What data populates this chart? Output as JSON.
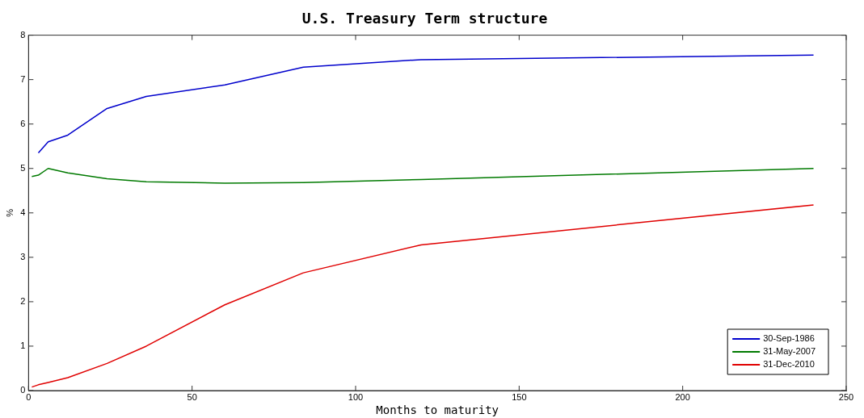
{
  "chart_data": {
    "type": "line",
    "title": "U.S. Treasury Term structure",
    "xlabel": "Months to maturity",
    "ylabel": "%",
    "xlim": [
      0,
      250
    ],
    "xticks": [
      0,
      50,
      100,
      150,
      200,
      250
    ],
    "ylim": [
      0,
      8
    ],
    "yticks": [
      0,
      1,
      2,
      3,
      4,
      5,
      6,
      7,
      8
    ],
    "grid": false,
    "legend": "bottom right",
    "marker": "none",
    "line_style": "solid",
    "series": [
      {
        "name": "30-Sep-1986",
        "color": "#0000cc",
        "x": [
          3,
          6,
          12,
          24,
          36,
          60,
          84,
          120,
          240
        ],
        "values": [
          5.35,
          5.6,
          5.75,
          6.35,
          6.62,
          6.88,
          7.28,
          7.45,
          7.55
        ]
      },
      {
        "name": "31-May-2007",
        "color": "#007a00",
        "x": [
          1,
          3,
          6,
          12,
          24,
          36,
          60,
          84,
          120,
          240
        ],
        "values": [
          4.82,
          4.85,
          5.0,
          4.9,
          4.77,
          4.7,
          4.67,
          4.68,
          4.75,
          5.0
        ]
      },
      {
        "name": "31-Dec-2010",
        "color": "#e00000",
        "x": [
          1,
          3,
          6,
          12,
          24,
          36,
          60,
          84,
          120,
          240
        ],
        "values": [
          0.08,
          0.13,
          0.18,
          0.29,
          0.61,
          1.0,
          1.93,
          2.65,
          3.28,
          4.18
        ]
      }
    ]
  }
}
